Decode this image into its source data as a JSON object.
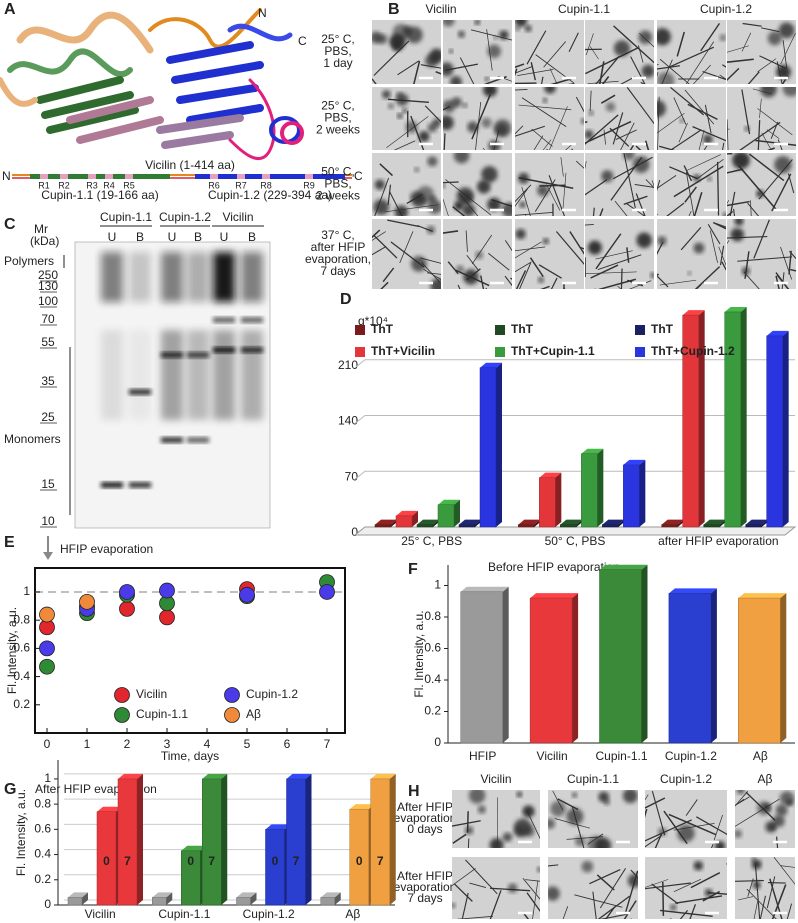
{
  "panel_labels": {
    "a": "A",
    "b": "B",
    "c": "C",
    "d": "D",
    "e": "E",
    "f": "F",
    "g": "G",
    "h": "H"
  },
  "panel_a": {
    "structure_n": "N",
    "structure_c": "C",
    "map_n": "N",
    "map_c": "C",
    "vicilin": "Vicilin (1-414 aa)",
    "cupin_11": "Cupin-1.1 (19-166 aa)",
    "cupin_12": "Cupin-1.2 (229-394 aa)",
    "repeats": [
      "R1",
      "R2",
      "R3",
      "R4",
      "R5",
      "R6",
      "R7",
      "R8",
      "R9"
    ],
    "colors": {
      "vicilin": "#d9262e",
      "cupin_11": "#2f7d32",
      "cupin_12": "#1f2fd0"
    }
  },
  "panel_b": {
    "columns": [
      "Vicilin",
      "Cupin-1.1",
      "Cupin-1.2"
    ],
    "column_colors": [
      "#d9262e",
      "#2f7d32",
      "#1f2fd0"
    ],
    "rows": [
      [
        "25° C,",
        "PBS,",
        "1 day"
      ],
      [
        "25° C,",
        "PBS,",
        "2 weeks"
      ],
      [
        "50° C,",
        "PBS,",
        "2 weeks"
      ],
      [
        "37° C,",
        "after HFIP",
        "evaporation,",
        "7 days"
      ]
    ]
  },
  "panel_c": {
    "mr": "Mr",
    "unit": "(kDa)",
    "lanes": [
      "Cupin-1.1",
      "Cupin-1.2",
      "Vicilin"
    ],
    "sublanes": [
      "U",
      "B"
    ],
    "markers": [
      250,
      130,
      100,
      70,
      55,
      35,
      25,
      15,
      10
    ],
    "polymers": "Polymers",
    "monomers": "Monomers"
  },
  "panel_h": {
    "columns": [
      "Vicilin",
      "Cupin-1.1",
      "Cupin-1.2",
      "Aβ"
    ],
    "column_colors": [
      "#d9262e",
      "#2f7d32",
      "#1f2fd0",
      "#c8782a"
    ],
    "rows": [
      [
        "After HFIP",
        "evaporation",
        "0 days"
      ],
      [
        "After HFIP",
        "evaporation",
        "7 days"
      ]
    ]
  },
  "chart_data": [
    {
      "type": "bar3d",
      "ylabel": "q*10⁴",
      "categories": [
        "25° C, PBS",
        "50° C, PBS",
        "after HFIP evaporation"
      ],
      "series": [
        {
          "name": "ThT",
          "color": "#7a1c1c",
          "values": [
            3,
            3,
            3
          ]
        },
        {
          "name": "ThT+Vicilin",
          "color": "#e2363a",
          "values": [
            14,
            62,
            266
          ]
        },
        {
          "name": "ThT",
          "color": "#1f4a24",
          "values": [
            3,
            3,
            3
          ]
        },
        {
          "name": "ThT+Cupin-1.1",
          "color": "#3a9a3e",
          "values": [
            28,
            92,
            270
          ]
        },
        {
          "name": "ThT",
          "color": "#1b2060",
          "values": [
            3,
            3,
            3
          ]
        },
        {
          "name": "ThT+Cupin-1.2",
          "color": "#2a35e0",
          "values": [
            200,
            78,
            240
          ]
        }
      ],
      "ylim": [
        0,
        280
      ],
      "yticks": [
        0,
        70,
        140,
        210
      ],
      "grid": true,
      "legend": "top"
    },
    {
      "type": "scatter",
      "annotation": "HFIP evaporation",
      "xlabel": "Time, days",
      "ylabel": "Fl. Intensity, a.u.",
      "series": [
        {
          "name": "Vicilin",
          "color": "#e2262e",
          "x": [
            0,
            1,
            2,
            3,
            5
          ],
          "values": [
            0.75,
            0.9,
            0.88,
            0.82,
            1.02
          ]
        },
        {
          "name": "Cupin-1.1",
          "color": "#2e8a34",
          "x": [
            0,
            1,
            2,
            3,
            5,
            7
          ],
          "values": [
            0.47,
            0.85,
            0.98,
            0.92,
            0.97,
            1.07
          ]
        },
        {
          "name": "Cupin-1.2",
          "color": "#4a3ae8",
          "x": [
            0,
            1,
            2,
            3,
            5,
            7
          ],
          "values": [
            0.6,
            0.88,
            1.0,
            1.01,
            0.98,
            1.0
          ]
        },
        {
          "name": "Aβ",
          "color": "#f08a3a",
          "x": [
            0,
            1
          ],
          "values": [
            0.84,
            0.93
          ]
        }
      ],
      "reference_line": 1,
      "xlim": [
        -0.3,
        7.45
      ],
      "xticks": [
        0,
        1,
        2,
        3,
        4,
        5,
        6,
        7
      ],
      "ylim": [
        0,
        1.17
      ],
      "yticks": [
        0.2,
        0.4,
        0.6,
        0.8,
        1
      ],
      "legend": "lower center"
    },
    {
      "type": "bar3d_single",
      "title": "Before HFIP evaporation",
      "ylabel": "Fl. Intensity, a.u.",
      "categories": [
        "HFIP",
        "Vicilin",
        "Cupin-1.1",
        "Cupin-1.2",
        "Aβ"
      ],
      "values": [
        0.96,
        0.92,
        1.1,
        0.95,
        0.92
      ],
      "colors": [
        "#9a9a9a",
        "#e8383c",
        "#3a8a3a",
        "#2a3ed0",
        "#f0a040"
      ],
      "label_colors": [
        "#333333",
        "#d9262e",
        "#2f7d32",
        "#1f2fd0",
        "#c8782a"
      ],
      "ylim": [
        0,
        1.13
      ],
      "yticks": [
        0,
        0.2,
        0.4,
        0.6,
        0.8,
        1
      ],
      "grid": false
    },
    {
      "type": "bar3d_grouped",
      "title": "After HFIP evaporation",
      "ylabel": "Fl. Intensity, a.u.",
      "categories": [
        "Vicilin",
        "Cupin-1.1",
        "Cupin-1.2",
        "Aβ"
      ],
      "series": [
        {
          "color": "#9a9a9a",
          "values": [
            0.06,
            0.06,
            0.06,
            0.06
          ]
        },
        {
          "name": "0",
          "values": [
            0.74,
            0.43,
            0.6,
            0.76
          ]
        },
        {
          "name": "7",
          "values": [
            1,
            1,
            1,
            1
          ]
        }
      ],
      "colors": [
        "#e8383c",
        "#3a8a3a",
        "#2a3ed0",
        "#f0a040"
      ],
      "label_colors": [
        "#d9262e",
        "#2f7d32",
        "#1f2fd0",
        "#c8782a"
      ],
      "ylim": [
        0,
        1.15
      ],
      "yticks": [
        0,
        0.2,
        0.4,
        0.6,
        0.8,
        1
      ],
      "grid": true
    }
  ]
}
